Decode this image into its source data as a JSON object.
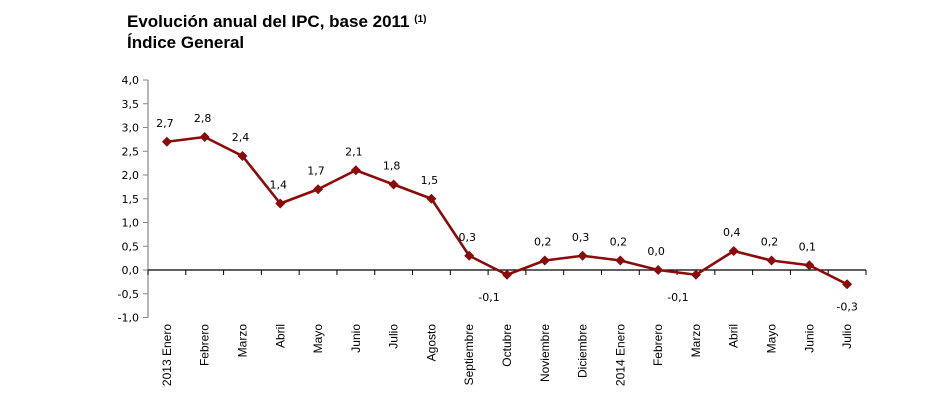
{
  "chart_data": {
    "type": "line",
    "title": "Evolución anual del IPC, base 2011",
    "title_superscript": "(1)",
    "subtitle": "Índice General",
    "xlabel": "",
    "ylabel": "",
    "ylim": [
      -1.0,
      4.0
    ],
    "yticks": [
      "4,0",
      "3,5",
      "3,0",
      "2,5",
      "2,0",
      "1,5",
      "1,0",
      "0,5",
      "0,0",
      "-0,5",
      "-1,0"
    ],
    "grid": false,
    "legend": null,
    "categories": [
      "2013 Enero",
      "Febrero",
      "Marzo",
      "Abril",
      "Mayo",
      "Junio",
      "Julio",
      "Agosto",
      "Septiembre",
      "Octubre",
      "Noviembre",
      "Diciembre",
      "2014 Enero",
      "Febrero",
      "Marzo",
      "Abril",
      "Mayo",
      "Junio",
      "Julio"
    ],
    "series": [
      {
        "name": "Índice General",
        "color": "#8B0A0A",
        "values": [
          2.7,
          2.8,
          2.4,
          1.4,
          1.7,
          2.1,
          1.8,
          1.5,
          0.3,
          -0.1,
          0.2,
          0.3,
          0.2,
          0.0,
          -0.1,
          0.4,
          0.2,
          0.1,
          -0.3
        ],
        "labels": [
          "2,7",
          "2,8",
          "2,4",
          "1,4",
          "1,7",
          "2,1",
          "1,8",
          "1,5",
          "0,3",
          "-0,1",
          "0,2",
          "0,3",
          "0,2",
          "0,0",
          "-0,1",
          "0,4",
          "0,2",
          "0,1",
          "-0,3"
        ]
      }
    ]
  }
}
